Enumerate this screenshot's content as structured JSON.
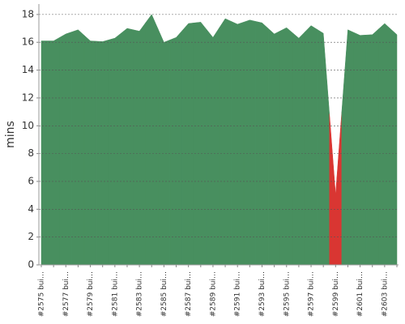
{
  "chart_data": {
    "type": "area",
    "y_label": "mins",
    "categories": [
      "#2575 bui…",
      null,
      "#2577 bui…",
      null,
      "#2579 bui…",
      null,
      "#2581 bui…",
      null,
      "#2583 bui…",
      null,
      "#2585 bui…",
      null,
      "#2587 bui…",
      null,
      "#2589 bui…",
      null,
      "#2591 bui…",
      null,
      "#2593 bui…",
      null,
      "#2595 bui…",
      null,
      "#2597 bui…",
      null,
      "#2599 bui…",
      null,
      "#2601 bui…",
      null,
      "#2603 bui…",
      null
    ],
    "series": [
      {
        "values": [
          16.1,
          16.1,
          16.6,
          16.9,
          16.1,
          16.05,
          16.3,
          17.0,
          16.8,
          18.0,
          16.0,
          16.35,
          17.35,
          17.45,
          16.35,
          17.7,
          17.3,
          17.6,
          17.4,
          16.6,
          17.05,
          16.3,
          17.2,
          16.65,
          5.05,
          16.9,
          16.5,
          16.55,
          17.35,
          16.55
        ],
        "colors": [
          "#488f5f",
          "#488f5f",
          "#488f5f",
          "#488f5f",
          "#488f5f",
          "#488f5f",
          "#488f5f",
          "#488f5f",
          "#488f5f",
          "#488f5f",
          "#488f5f",
          "#488f5f",
          "#488f5f",
          "#488f5f",
          "#488f5f",
          "#488f5f",
          "#488f5f",
          "#488f5f",
          "#488f5f",
          "#488f5f",
          "#488f5f",
          "#488f5f",
          "#488f5f",
          "#488f5f",
          "#d93632",
          "#488f5f",
          "#488f5f",
          "#488f5f",
          "#488f5f",
          "#488f5f"
        ]
      }
    ],
    "ylim": [
      0,
      18.75
    ],
    "yticks": [
      0,
      2,
      4,
      6,
      8,
      10,
      12,
      14,
      16,
      18
    ],
    "grid": true
  }
}
